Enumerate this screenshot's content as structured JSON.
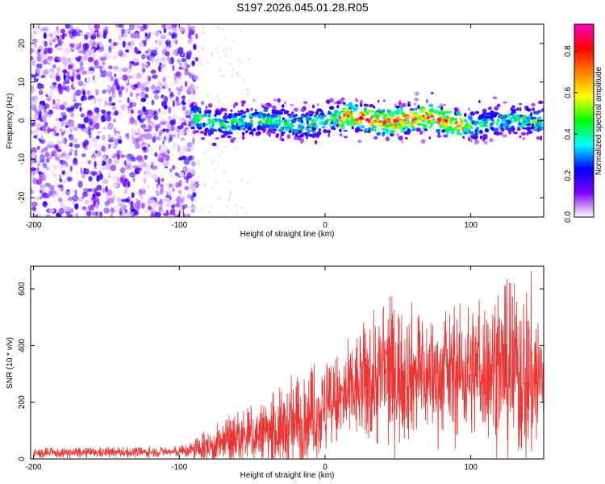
{
  "title": "S197.2026.045.01.28.R05",
  "chart_data": [
    {
      "type": "heatmap",
      "title": "S197.2026.045.01.28.R05",
      "xlabel": "Height of straight line (km)",
      "ylabel": "Frequency (Hz)",
      "xlim": [
        -202,
        150
      ],
      "ylim": [
        -25,
        25
      ],
      "xticks": [
        -200,
        -100,
        0,
        100
      ],
      "yticks": [
        -20,
        -10,
        0,
        10,
        20
      ],
      "colorbar": {
        "label": "Normalized spectral amplitude",
        "range": [
          0.0,
          0.93
        ],
        "ticks": [
          0.0,
          0.2,
          0.4,
          0.6,
          0.8
        ],
        "colors": [
          "#ffffff",
          "#8000ff",
          "#0000ff",
          "#00ffff",
          "#00ff00",
          "#ffff00",
          "#ff8000",
          "#ff0000",
          "#ff00c0"
        ]
      },
      "description_features": {
        "noise_region_x": [
          -200,
          -92
        ],
        "signal_band_center_hz": 0,
        "signal_band_halfwidth_hz": 3,
        "peak_region_x": [
          10,
          95
        ],
        "peak_amplitude": 0.9
      }
    },
    {
      "type": "line",
      "xlabel": "Height of straight line (km)",
      "ylabel": "SNR (10 * v/v)",
      "xlim": [
        -202,
        150
      ],
      "ylim": [
        0,
        680
      ],
      "xticks": [
        -200,
        -100,
        0,
        100
      ],
      "yticks": [
        0,
        200,
        400,
        600
      ],
      "color": "#ee3333",
      "envelope": {
        "x": [
          -200,
          -100,
          -85,
          -70,
          -60,
          -50,
          -40,
          -30,
          -20,
          -10,
          0,
          10,
          20,
          30,
          40,
          50,
          60,
          70,
          80,
          90,
          100,
          110,
          120,
          130,
          140,
          150
        ],
        "mean": [
          20,
          25,
          35,
          55,
          70,
          80,
          90,
          100,
          120,
          150,
          170,
          200,
          240,
          270,
          300,
          300,
          300,
          290,
          290,
          300,
          310,
          320,
          320,
          300,
          290,
          280
        ],
        "max": [
          40,
          45,
          90,
          140,
          180,
          200,
          220,
          260,
          320,
          330,
          360,
          400,
          450,
          530,
          600,
          590,
          560,
          530,
          520,
          550,
          580,
          600,
          620,
          650,
          680,
          560
        ]
      }
    }
  ]
}
